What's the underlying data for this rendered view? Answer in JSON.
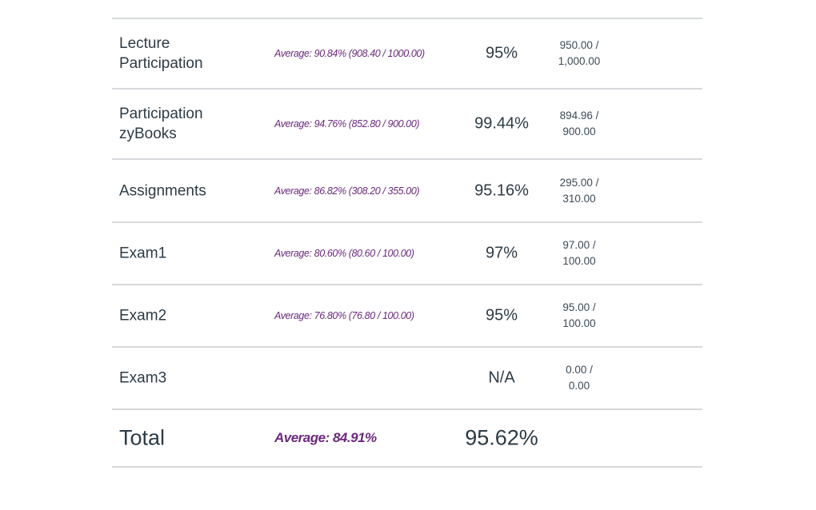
{
  "grade_summary": {
    "rows": [
      {
        "name": "Lecture Participation",
        "name_lines": [
          "Lecture",
          "Participation"
        ],
        "average": "Average: 90.84% (908.40 / 1000.00)",
        "percent": "95%",
        "points_earned": "950.00 /",
        "points_possible": "1,000.00"
      },
      {
        "name": "Participation zyBooks",
        "name_lines": [
          "Participation",
          "zyBooks"
        ],
        "average": "Average: 94.76% (852.80 / 900.00)",
        "percent": "99.44%",
        "points_earned": "894.96 /",
        "points_possible": "900.00"
      },
      {
        "name": "Assignments",
        "name_lines": [
          "Assignments"
        ],
        "average": "Average: 86.82% (308.20 / 355.00)",
        "percent": "95.16%",
        "points_earned": "295.00 /",
        "points_possible": "310.00"
      },
      {
        "name": "Exam1",
        "name_lines": [
          "Exam1"
        ],
        "average": "Average: 80.60% (80.60 / 100.00)",
        "percent": "97%",
        "points_earned": "97.00 /",
        "points_possible": "100.00"
      },
      {
        "name": "Exam2",
        "name_lines": [
          "Exam2"
        ],
        "average": "Average: 76.80% (76.80 / 100.00)",
        "percent": "95%",
        "points_earned": "95.00 /",
        "points_possible": "100.00"
      },
      {
        "name": "Exam3",
        "name_lines": [
          "Exam3"
        ],
        "average": "",
        "percent": "N/A",
        "points_earned": "0.00 /",
        "points_possible": "0.00"
      }
    ],
    "total": {
      "label": "Total",
      "average": "Average: 84.91%",
      "percent": "95.62%"
    }
  },
  "colors": {
    "text": "#2d3b45",
    "average_text": "#6b2a7d",
    "divider": "#d7d9dc"
  }
}
